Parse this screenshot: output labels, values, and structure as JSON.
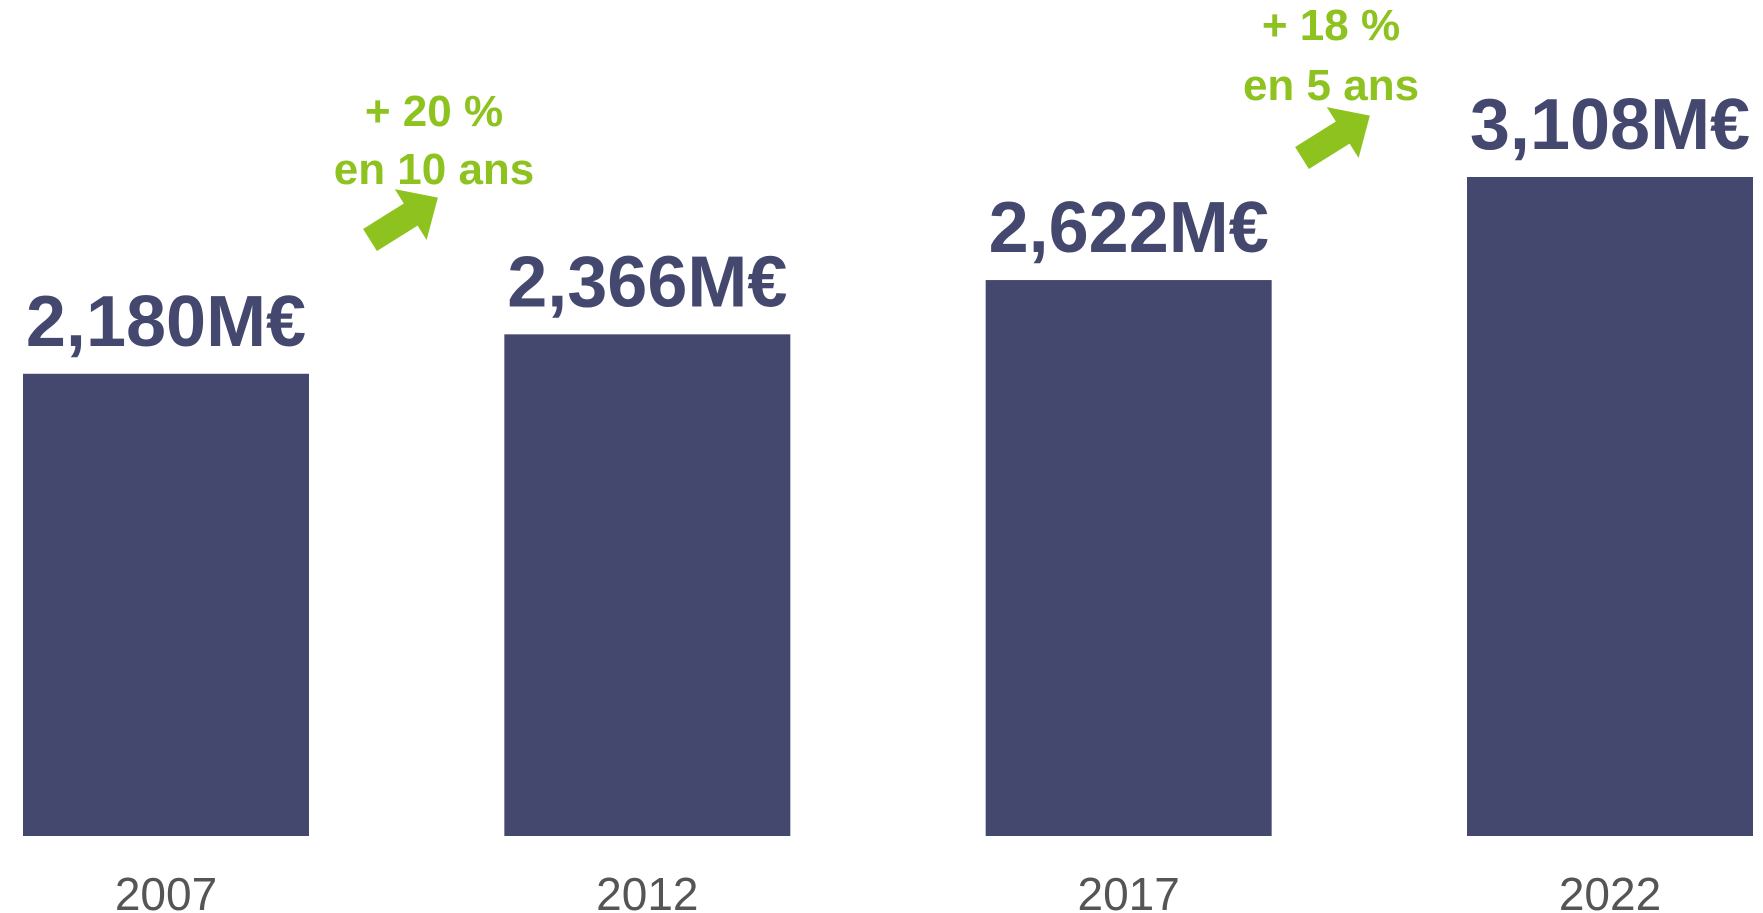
{
  "chart_data": {
    "type": "bar",
    "categories": [
      "2007",
      "2012",
      "2017",
      "2022"
    ],
    "values": [
      2180,
      2366,
      2622,
      3108
    ],
    "value_labels": [
      "2,180M€",
      "2,366M€",
      "2,622M€",
      "3,108M€"
    ],
    "color": "#45486e",
    "annotations": [
      {
        "lines": [
          "+ 20 %",
          "en 10 ans"
        ],
        "color": "#8dc21f"
      },
      {
        "lines": [
          "+ 18 %",
          "en 5 ans"
        ],
        "color": "#8dc21f"
      }
    ]
  }
}
